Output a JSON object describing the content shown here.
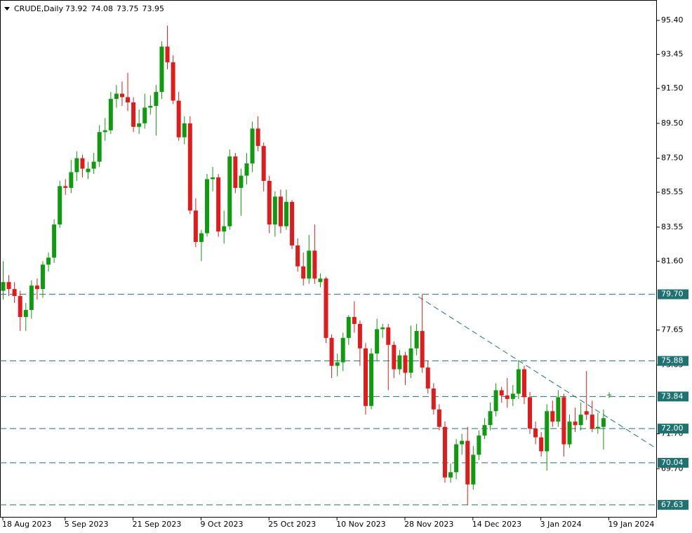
{
  "chart_data": {
    "type": "candlestick",
    "title": "CRUDE,Daily",
    "categories": [
      "18 Aug 2023",
      null,
      null,
      null,
      null,
      null,
      null,
      null,
      null,
      null,
      null,
      "5 Sep 2023",
      null,
      null,
      null,
      null,
      null,
      null,
      null,
      null,
      null,
      null,
      null,
      "21 Sep 2023",
      null,
      null,
      null,
      null,
      null,
      null,
      null,
      null,
      null,
      null,
      null,
      "9 Oct 2023",
      null,
      null,
      null,
      null,
      null,
      null,
      null,
      null,
      null,
      null,
      null,
      "25 Oct 2023",
      null,
      null,
      null,
      null,
      null,
      null,
      null,
      null,
      null,
      null,
      null,
      "10 Nov 2023",
      null,
      null,
      null,
      null,
      null,
      null,
      null,
      null,
      null,
      null,
      null,
      "28 Nov 2023",
      null,
      null,
      null,
      null,
      null,
      null,
      null,
      null,
      null,
      null,
      null,
      "14 Dec 2023",
      null,
      null,
      null,
      null,
      null,
      null,
      null,
      null,
      null,
      null,
      null,
      "3 Jan 2024",
      null,
      null,
      null,
      null,
      null,
      null,
      null,
      null,
      null,
      null,
      null,
      "19 Jan 2024"
    ],
    "open": [
      79.9,
      80.4,
      80.0,
      79.6,
      78.4,
      78.8,
      80.2,
      80.0,
      81.4,
      81.8,
      83.7,
      85.9,
      85.8,
      86.7,
      87.5,
      86.7,
      86.9,
      87.3,
      89.0,
      89.1,
      90.9,
      91.2,
      91.0,
      90.7,
      89.3,
      89.5,
      90.4,
      90.5,
      91.3,
      93.9,
      93.0,
      90.8,
      88.7,
      89.5,
      84.5,
      82.7,
      83.2,
      86.3,
      86.4,
      83.3,
      83.6,
      87.6,
      85.8,
      86.5,
      87.2,
      89.2,
      88.2,
      86.2,
      83.7,
      85.3,
      83.6,
      85.0,
      82.5,
      81.3,
      80.6,
      82.2,
      80.4,
      80.6,
      77.2,
      75.6,
      75.8,
      77.2,
      78.4,
      78.0,
      76.6,
      73.3,
      76.3,
      77.7,
      77.8,
      76.8,
      75.4,
      76.2,
      75.2,
      76.6,
      77.6,
      75.5,
      74.3,
      73.1,
      72.1,
      69.2,
      69.5,
      71.1,
      71.3,
      68.8,
      70.5,
      71.6,
      72.2,
      73.0,
      74.2,
      73.9,
      73.7,
      74.0,
      75.4,
      73.8,
      72.0,
      71.5,
      70.7,
      73.0,
      72.4,
      73.8,
      71.1,
      72.4,
      72.2,
      73.0,
      72.8,
      72.0,
      72.1,
      73.92
    ],
    "high": [
      81.6,
      80.8,
      80.4,
      79.9,
      79.2,
      80.5,
      80.6,
      81.6,
      82.1,
      84.0,
      86.2,
      86.3,
      87.4,
      87.9,
      87.7,
      87.3,
      87.8,
      89.4,
      89.8,
      91.3,
      91.7,
      91.9,
      92.4,
      91.0,
      90.3,
      91.2,
      91.1,
      91.7,
      94.2,
      95.1,
      93.4,
      91.3,
      89.9,
      89.9,
      85.2,
      83.4,
      86.6,
      87.0,
      86.6,
      84.5,
      88.0,
      87.8,
      86.9,
      87.8,
      89.6,
      89.9,
      88.4,
      86.5,
      85.6,
      85.7,
      85.7,
      85.1,
      82.9,
      82.1,
      83.1,
      83.7,
      80.9,
      80.7,
      77.4,
      76.3,
      77.5,
      78.5,
      79.3,
      78.2,
      76.9,
      76.6,
      78.3,
      78.0,
      78.0,
      77.0,
      76.5,
      76.4,
      77.9,
      78.0,
      79.7,
      75.9,
      74.6,
      73.4,
      72.4,
      70.0,
      71.4,
      71.7,
      72.1,
      71.0,
      71.9,
      72.6,
      73.5,
      74.6,
      74.4,
      74.9,
      74.5,
      75.88,
      75.6,
      74.1,
      72.4,
      71.8,
      73.4,
      73.6,
      74.2,
      74.0,
      72.8,
      73.2,
      73.5,
      75.3,
      73.6,
      72.9,
      73.1,
      74.08
    ],
    "low": [
      79.4,
      79.6,
      79.2,
      77.6,
      77.6,
      78.3,
      79.4,
      79.5,
      81.0,
      81.5,
      83.5,
      85.4,
      85.5,
      86.2,
      86.4,
      86.3,
      86.6,
      87.0,
      88.5,
      88.9,
      90.4,
      90.5,
      90.2,
      89.0,
      88.9,
      89.2,
      90.0,
      88.8,
      90.9,
      92.6,
      90.6,
      88.5,
      88.3,
      84.3,
      82.4,
      81.6,
      83.0,
      85.6,
      83.0,
      82.6,
      83.4,
      85.5,
      84.2,
      86.0,
      86.7,
      87.9,
      85.6,
      83.2,
      83.0,
      83.2,
      83.4,
      82.3,
      81.0,
      80.2,
      80.3,
      80.3,
      80.1,
      76.9,
      74.9,
      75.0,
      75.3,
      76.8,
      77.5,
      75.6,
      72.8,
      73.1,
      75.9,
      77.2,
      74.2,
      74.9,
      75.1,
      74.5,
      74.9,
      76.2,
      75.2,
      74.0,
      72.8,
      71.9,
      68.9,
      68.9,
      69.1,
      70.5,
      67.63,
      68.5,
      70.2,
      71.4,
      71.9,
      72.7,
      73.5,
      73.2,
      73.3,
      73.7,
      73.4,
      71.7,
      71.1,
      70.4,
      69.6,
      72.1,
      72.1,
      70.4,
      70.9,
      71.8,
      71.9,
      72.5,
      71.8,
      71.7,
      70.8,
      73.75
    ],
    "close": [
      80.4,
      80.0,
      79.6,
      78.4,
      78.8,
      80.2,
      80.0,
      81.4,
      81.8,
      83.7,
      85.9,
      85.8,
      86.7,
      87.5,
      86.9,
      86.9,
      87.3,
      89.0,
      89.1,
      90.9,
      91.2,
      91.0,
      90.7,
      89.3,
      89.5,
      90.4,
      90.5,
      91.3,
      93.9,
      93.0,
      90.8,
      88.7,
      89.5,
      84.5,
      82.7,
      83.2,
      86.3,
      86.4,
      83.3,
      83.6,
      87.6,
      85.8,
      86.5,
      87.2,
      89.2,
      88.2,
      86.2,
      83.7,
      85.3,
      83.6,
      85.0,
      82.5,
      81.3,
      80.6,
      82.2,
      80.6,
      80.6,
      77.2,
      75.6,
      75.8,
      77.2,
      78.4,
      78.0,
      76.6,
      73.3,
      76.3,
      77.7,
      77.8,
      76.8,
      75.4,
      76.2,
      75.2,
      76.6,
      77.6,
      75.5,
      74.3,
      73.1,
      72.1,
      69.2,
      69.5,
      71.1,
      71.3,
      68.8,
      70.5,
      71.6,
      72.2,
      73.0,
      74.2,
      73.9,
      73.7,
      74.0,
      75.4,
      73.8,
      72.0,
      71.5,
      70.7,
      73.0,
      72.4,
      73.8,
      71.1,
      72.4,
      72.2,
      72.8,
      72.8,
      72.0,
      72.1,
      72.6,
      73.95
    ],
    "up_color": "#109a10",
    "down_color": "#e01b1b",
    "levels": [
      {
        "value": 79.7,
        "label": "79.70"
      },
      75.88,
      73.84,
      {
        "value": 72.0,
        "label": "72.00"
      },
      70.04,
      67.63
    ],
    "level_color": "#1e7372",
    "ylim": [
      66.9,
      96.57
    ],
    "yticks": [
      {
        "value": 95.4,
        "label": "95.40"
      },
      93.45,
      {
        "value": 91.5,
        "label": "91.50"
      },
      {
        "value": 89.5,
        "label": "89.50"
      },
      {
        "value": 87.5,
        "label": "87.50"
      },
      85.55,
      83.55,
      {
        "value": 81.6,
        "label": "81.60"
      },
      77.65,
      75.65,
      {
        "value": 71.7,
        "label": "71.70"
      },
      {
        "value": 69.7,
        "label": "69.70"
      }
    ]
  }
}
